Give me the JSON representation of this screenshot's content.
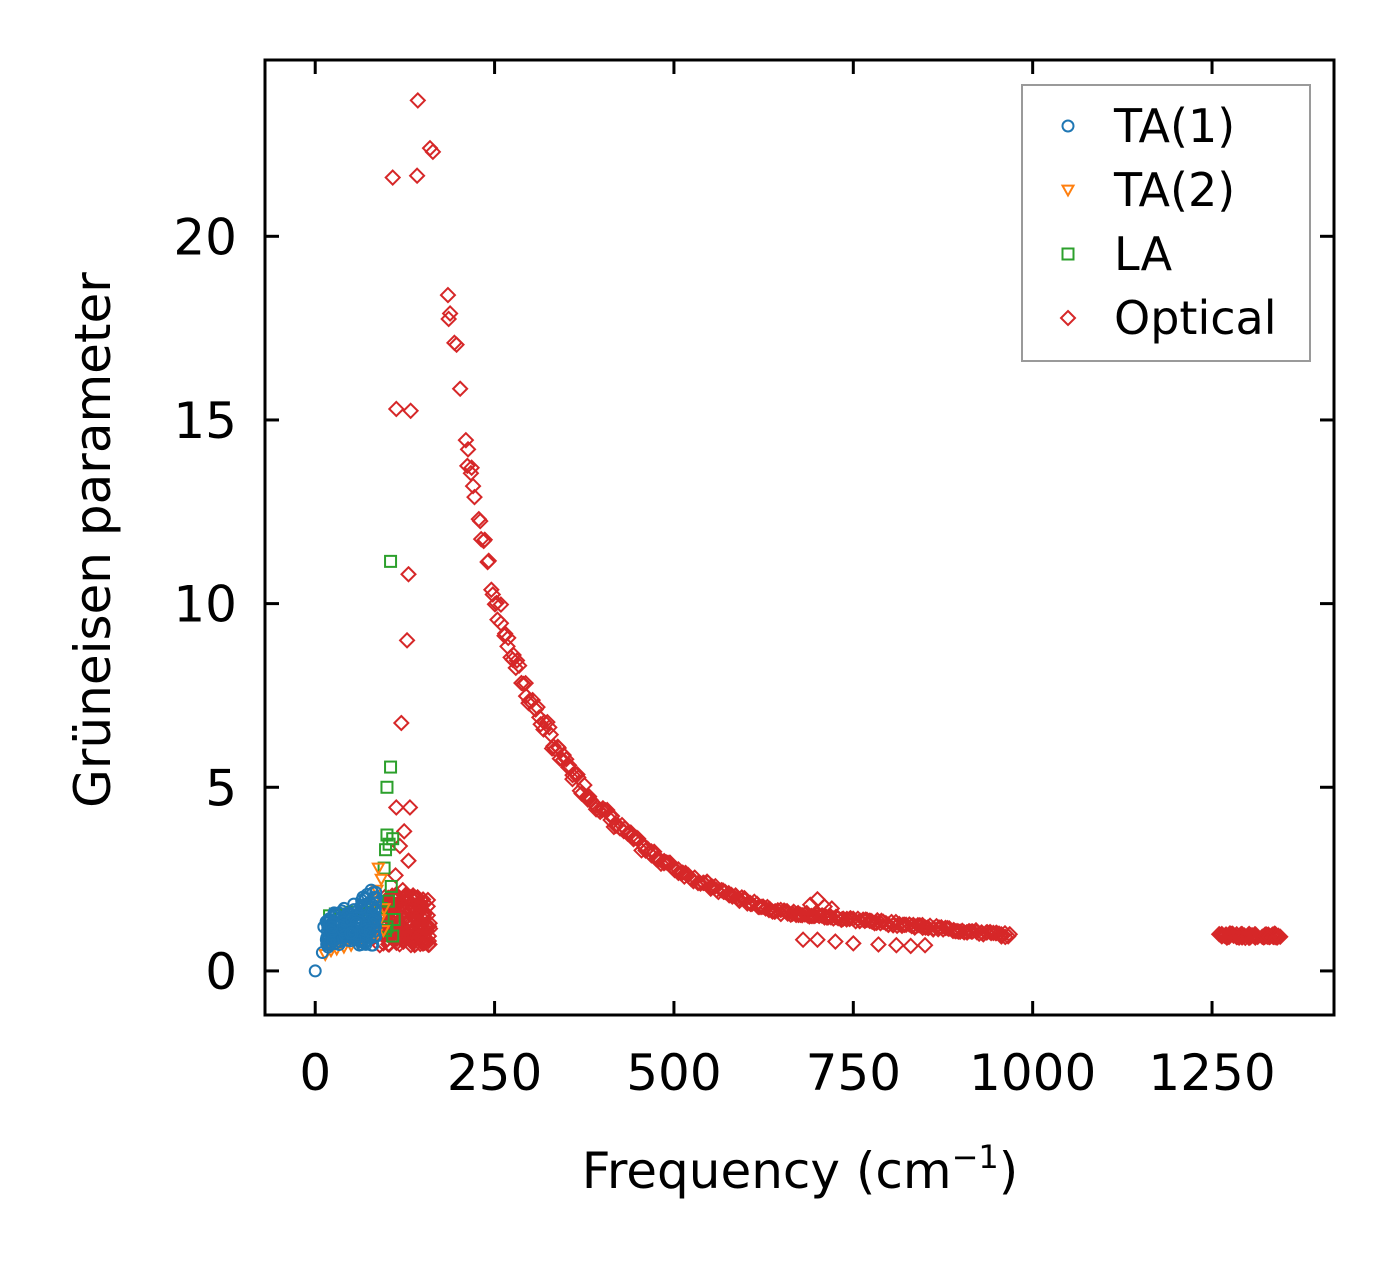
{
  "chart_data": {
    "type": "scatter",
    "title": "",
    "xlabel": "Frequency (cm",
    "xlabel_sup": "−1",
    "xlabel_close": ")",
    "ylabel": "Grüneisen parameter",
    "xlim": [
      -70,
      1420
    ],
    "ylim": [
      -1.2,
      24.8
    ],
    "xticks": [
      0,
      250,
      500,
      750,
      1000,
      1250
    ],
    "yticks": [
      0,
      5,
      10,
      15,
      20
    ],
    "xtick_labels": [
      "0",
      "250",
      "500",
      "750",
      "1000",
      "1250"
    ],
    "ytick_labels": [
      "0",
      "5",
      "10",
      "15",
      "20"
    ],
    "legend_position": "top-right",
    "series": [
      {
        "name": "TA(1)",
        "marker": "circle",
        "color": "#1f77b4",
        "points": [
          [
            0,
            0
          ],
          [
            10,
            0.5
          ],
          [
            12,
            1.2
          ],
          [
            16,
            0.9
          ],
          [
            20,
            1.05
          ],
          [
            25,
            0.85
          ],
          [
            30,
            1.3
          ],
          [
            35,
            0.8
          ],
          [
            40,
            1.0
          ],
          [
            45,
            1.2
          ],
          [
            50,
            0.9
          ],
          [
            55,
            1.1
          ],
          [
            60,
            1.3
          ],
          [
            65,
            1.05
          ],
          [
            70,
            1.5
          ],
          [
            75,
            1.2
          ],
          [
            78,
            2.2
          ],
          [
            80,
            1.8
          ],
          [
            82,
            1.3
          ],
          [
            85,
            2.0
          ],
          [
            62,
            0.8
          ],
          [
            48,
            1.4
          ],
          [
            38,
            1.1
          ],
          [
            28,
            0.95
          ],
          [
            18,
            0.65
          ],
          [
            72,
            1.7
          ],
          [
            58,
            1.35
          ],
          [
            68,
            0.95
          ]
        ]
      },
      {
        "name": "TA(2)",
        "marker": "triangle-down",
        "color": "#ff7f0e",
        "points": [
          [
            14,
            0.45
          ],
          [
            22,
            0.55
          ],
          [
            30,
            0.6
          ],
          [
            40,
            0.65
          ],
          [
            50,
            0.7
          ],
          [
            60,
            0.75
          ],
          [
            70,
            0.8
          ],
          [
            78,
            0.9
          ],
          [
            85,
            1.0
          ],
          [
            88,
            2.8
          ],
          [
            90,
            1.4
          ],
          [
            92,
            2.5
          ],
          [
            95,
            1.1
          ],
          [
            82,
            1.9
          ],
          [
            86,
            2.2
          ],
          [
            74,
            1.2
          ],
          [
            66,
            0.95
          ],
          [
            96,
            1.7
          ]
        ]
      },
      {
        "name": "LA",
        "marker": "square",
        "color": "#2ca02c",
        "points": [
          [
            20,
            1.5
          ],
          [
            28,
            1.55
          ],
          [
            36,
            1.5
          ],
          [
            44,
            1.55
          ],
          [
            52,
            1.6
          ],
          [
            60,
            1.6
          ],
          [
            68,
            1.55
          ],
          [
            76,
            1.6
          ],
          [
            84,
            1.55
          ],
          [
            92,
            1.7
          ],
          [
            96,
            2.8
          ],
          [
            98,
            3.3
          ],
          [
            100,
            3.7
          ],
          [
            100,
            5.0
          ],
          [
            103,
            3.45
          ],
          [
            105,
            5.55
          ],
          [
            105,
            11.15
          ],
          [
            108,
            3.6
          ],
          [
            100,
            1.2
          ],
          [
            102,
            1.9
          ],
          [
            106,
            2.3
          ],
          [
            110,
            1.4
          ],
          [
            108,
            0.95
          ],
          [
            98,
            1.1
          ]
        ]
      },
      {
        "name": "Optical",
        "marker": "diamond",
        "color": "#d62728",
        "points": [
          [
            143,
            23.7
          ],
          [
            160,
            22.4
          ],
          [
            164,
            22.3
          ],
          [
            108,
            21.6
          ],
          [
            142,
            21.65
          ],
          [
            185,
            18.4
          ],
          [
            188,
            17.9
          ],
          [
            186,
            17.75
          ],
          [
            194,
            17.1
          ],
          [
            197,
            17.05
          ],
          [
            202,
            15.85
          ],
          [
            113,
            15.3
          ],
          [
            133,
            15.25
          ],
          [
            210,
            14.45
          ],
          [
            213,
            14.2
          ],
          [
            212,
            13.75
          ],
          [
            218,
            13.7
          ],
          [
            217,
            13.55
          ],
          [
            220,
            13.2
          ],
          [
            222,
            12.9
          ],
          [
            228,
            12.3
          ],
          [
            130,
            10.8
          ],
          [
            128,
            9.0
          ],
          [
            120,
            6.75
          ],
          [
            113,
            4.45
          ],
          [
            132,
            4.45
          ],
          [
            124,
            3.8
          ],
          [
            118,
            3.4
          ],
          [
            130,
            3.0
          ],
          [
            112,
            2.6
          ],
          [
            122,
            2.2
          ],
          [
            138,
            2.0
          ],
          [
            125,
            1.6
          ],
          [
            140,
            1.4
          ],
          [
            115,
            1.3
          ],
          [
            148,
            1.2
          ],
          [
            155,
            1.1
          ],
          [
            135,
            1.05
          ],
          [
            145,
            0.95
          ],
          [
            160,
            1.15
          ],
          [
            120,
            0.95
          ],
          [
            105,
            1.05
          ],
          [
            100,
            0.85
          ],
          [
            95,
            0.75
          ],
          [
            90,
            0.7
          ],
          [
            690,
            1.8
          ],
          [
            700,
            1.95
          ],
          [
            710,
            1.75
          ],
          [
            720,
            1.7
          ],
          [
            680,
            0.85
          ],
          [
            700,
            0.85
          ],
          [
            725,
            0.8
          ],
          [
            750,
            0.75
          ],
          [
            785,
            0.72
          ],
          [
            810,
            0.7
          ],
          [
            830,
            0.68
          ],
          [
            850,
            0.7
          ],
          [
            1260,
            1.0
          ],
          [
            1270,
            0.98
          ],
          [
            1280,
            0.96
          ],
          [
            1290,
            0.95
          ],
          [
            1300,
            0.94
          ],
          [
            1310,
            0.93
          ],
          [
            1320,
            0.93
          ],
          [
            1330,
            0.92
          ],
          [
            1340,
            0.92
          ],
          [
            1345,
            0.93
          ],
          [
            1275,
            1.02
          ],
          [
            1300,
            0.97
          ],
          [
            1325,
            0.95
          ],
          [
            1265,
            0.97
          ]
        ],
        "curve": {
          "note": "dense optical branch following gamma ≈ a / (freq - f0) + c",
          "segments": [
            [
              230,
              12.2
            ],
            [
              250,
              10.2
            ],
            [
              270,
              8.8
            ],
            [
              300,
              7.4
            ],
            [
              340,
              5.9
            ],
            [
              380,
              4.8
            ],
            [
              420,
              4.0
            ],
            [
              460,
              3.3
            ],
            [
              500,
              2.8
            ],
            [
              550,
              2.3
            ],
            [
              600,
              1.9
            ],
            [
              650,
              1.6
            ],
            [
              700,
              1.5
            ],
            [
              750,
              1.4
            ],
            [
              800,
              1.3
            ],
            [
              850,
              1.2
            ],
            [
              900,
              1.1
            ],
            [
              950,
              1.0
            ],
            [
              970,
              0.95
            ]
          ]
        }
      }
    ]
  }
}
